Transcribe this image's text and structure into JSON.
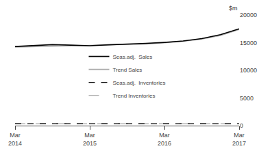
{
  "chart_data": {
    "type": "line",
    "ylabel": "$m",
    "categories": [
      "Mar\n2014",
      null,
      null,
      null,
      "Mar\n2015",
      null,
      null,
      null,
      "Mar\n2016",
      null,
      null,
      null,
      "Mar\n2017"
    ],
    "series": [
      {
        "name": "Seas.adj.  Sales",
        "color": "#000000",
        "line_style": "solid",
        "values": [
          14300,
          14450,
          14650,
          14550,
          14450,
          14620,
          14700,
          14870,
          15050,
          15300,
          15750,
          16450,
          17500
        ]
      },
      {
        "name": "Trend Sales",
        "color": "#aaaaaa",
        "line_style": "solid",
        "values": [
          14200,
          14280,
          14350,
          14400,
          14440,
          14520,
          14620,
          14760,
          14980,
          15250,
          15650,
          16300,
          17400
        ]
      },
      {
        "name": "Seas.adj.  Inventories",
        "color": "#000000",
        "line_style": "dashed",
        "values": [
          350,
          350,
          350,
          350,
          350,
          350,
          350,
          350,
          350,
          350,
          350,
          350,
          350
        ]
      },
      {
        "name": "Trend Inventories",
        "color": "#aaaaaa",
        "line_style": "long-dashed",
        "values": [
          350,
          350,
          350,
          350,
          350,
          350,
          350,
          350,
          350,
          350,
          350,
          350,
          350
        ]
      }
    ],
    "ylim": [
      0,
      20000
    ],
    "yticks": [
      0,
      5000,
      10000,
      15000,
      20000
    ],
    "grid": false,
    "legend": "center"
  }
}
